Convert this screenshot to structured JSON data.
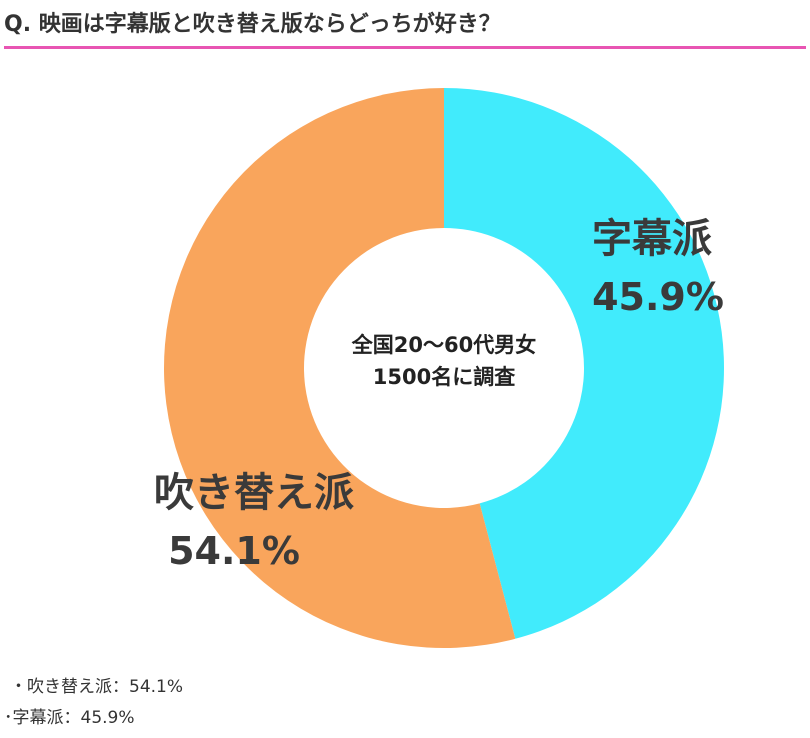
{
  "title": "Q. 映画は字幕版と吹き替え版ならどっちが好き？",
  "chart_data": {
    "type": "pie",
    "style": "donut",
    "title": "Q. 映画は字幕版と吹き替え版ならどっちが好き？",
    "center_text": [
      "全国20～60代男女",
      "1500名に調査"
    ],
    "slices": [
      {
        "label": "字幕派",
        "value": 45.9,
        "value_text": "45.9%",
        "color": "#41ebfc"
      },
      {
        "label": "吹き替え派",
        "value": 54.1,
        "value_text": "54.1%",
        "color": "#f9a55c"
      }
    ],
    "start_angle": "top",
    "direction": "clockwise"
  },
  "legend": [
    {
      "text": "・吹き替え派：54.1%"
    },
    {
      "text": "･字幕派：45.9%"
    }
  ],
  "colors": {
    "accent_rule": "#e855b3",
    "text": "#333333"
  }
}
